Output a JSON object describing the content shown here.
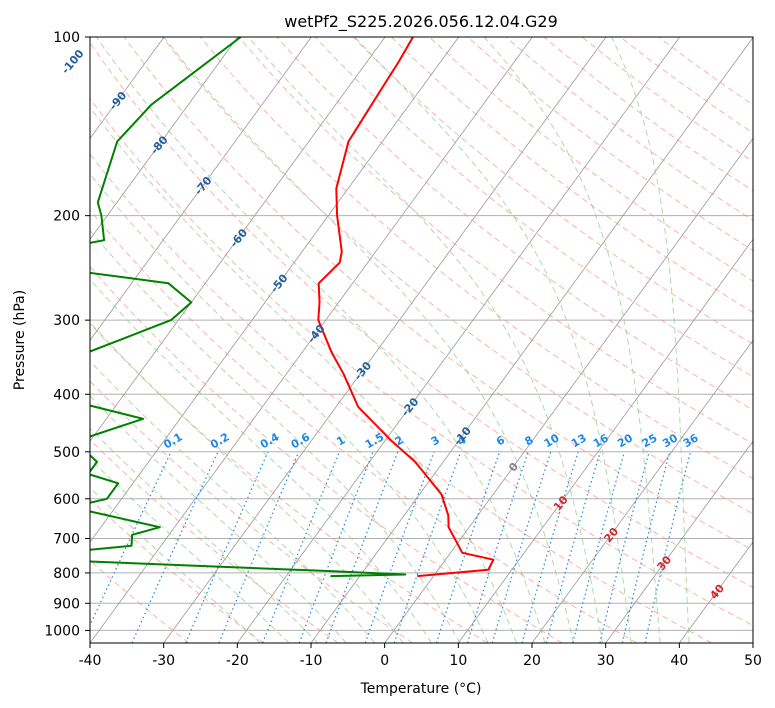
{
  "chart_data": {
    "type": "line",
    "title": "wetPf2_S225.2026.056.12.04.G29",
    "xlabel": "Temperature (°C)",
    "ylabel": "Pressure (hPa)",
    "xlim": [
      -40,
      50
    ],
    "ylim": [
      1050,
      100
    ],
    "y_scale": "log",
    "grid": true,
    "x_ticks": [
      -40,
      -30,
      -20,
      -10,
      0,
      10,
      20,
      30,
      40,
      50
    ],
    "y_ticks": [
      100,
      200,
      300,
      400,
      500,
      600,
      700,
      800,
      900,
      1000
    ],
    "skew": "skew-T",
    "colors": {
      "temperature": "#ff0000",
      "dewpoint": "#008000",
      "isotherm": "#999999",
      "dry_adiabat": "#fa8072",
      "moist_adiabat": "#90c890",
      "mixing_ratio": "#1e88e5",
      "isotherm_label": "#1f5f9f",
      "dry_label": "#d62728",
      "zero_label": "#808080"
    },
    "isotherm_labels": [
      -100,
      -90,
      -80,
      -70,
      -60,
      -50,
      -40,
      -30,
      -20,
      -10,
      0,
      10,
      20,
      30,
      40
    ],
    "mixing_ratio_labels": [
      "0.1",
      "0.2",
      "0.4",
      "0.6",
      "1",
      "1.5",
      "2",
      "3",
      "4",
      "6",
      "8",
      "10",
      "13",
      "16",
      "20",
      "25",
      "30",
      "36"
    ],
    "series": [
      {
        "name": "Temperature",
        "points": [
          [
            -56.2,
            100
          ],
          [
            -55.7,
            110
          ],
          [
            -55.4,
            120
          ],
          [
            -54.6,
            150
          ],
          [
            -51.6,
            180
          ],
          [
            -48.8,
            200
          ],
          [
            -44.6,
            230
          ],
          [
            -43.8,
            240
          ],
          [
            -44.2,
            250
          ],
          [
            -44.6,
            260
          ],
          [
            -42.6,
            280
          ],
          [
            -41.0,
            300
          ],
          [
            -36.0,
            340
          ],
          [
            -32.2,
            370
          ],
          [
            -27.0,
            420
          ],
          [
            -19.0,
            480
          ],
          [
            -13.8,
            520
          ],
          [
            -7.0,
            590
          ],
          [
            -4.0,
            640
          ],
          [
            -2.8,
            670
          ],
          [
            1.6,
            740
          ],
          [
            6.5,
            760
          ],
          [
            6.8,
            790
          ],
          [
            -2.2,
            810
          ]
        ]
      },
      {
        "name": "Dewpoint",
        "points": [
          [
            -79.6,
            100
          ],
          [
            -85.0,
            130
          ],
          [
            -86.0,
            150
          ],
          [
            -82.6,
            190
          ],
          [
            -80.8,
            200
          ],
          [
            -78.0,
            220
          ],
          [
            -90.5,
            238
          ],
          [
            -65.0,
            260
          ],
          [
            -60.0,
            280
          ],
          [
            -61.0,
            300
          ],
          [
            -71.0,
            350
          ],
          [
            -75.0,
            390
          ],
          [
            -55.0,
            440
          ],
          [
            -62.0,
            480
          ],
          [
            -57.0,
            520
          ],
          [
            -57.0,
            545
          ],
          [
            -52.0,
            565
          ],
          [
            -52.0,
            600
          ],
          [
            -56.0,
            620
          ],
          [
            -42.0,
            670
          ],
          [
            -45.0,
            690
          ],
          [
            -44.0,
            720
          ],
          [
            -60.0,
            755
          ],
          [
            -14.0,
            795
          ],
          [
            -4.0,
            805
          ],
          [
            -14.0,
            810
          ]
        ]
      }
    ]
  }
}
